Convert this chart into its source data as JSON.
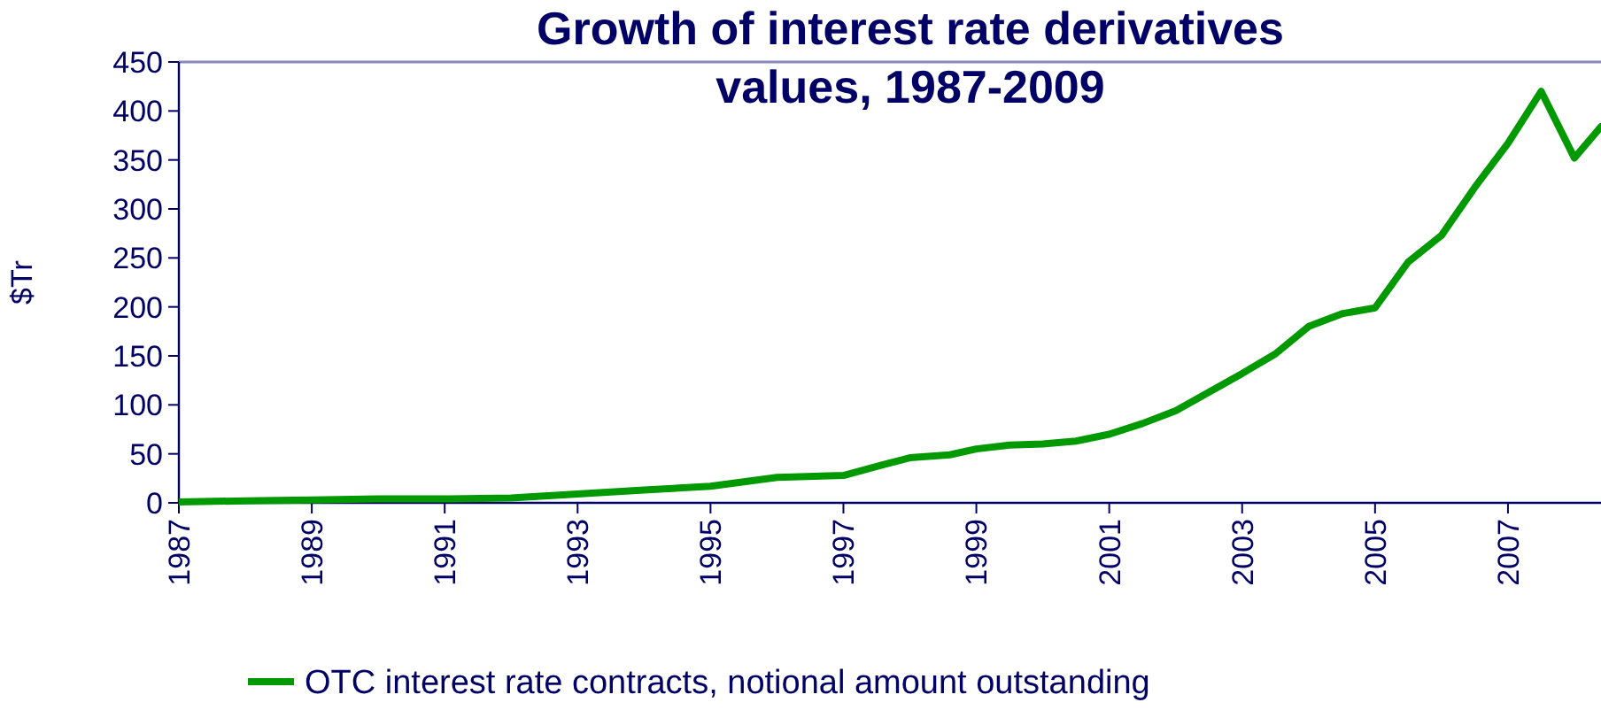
{
  "chart_data": {
    "type": "line",
    "title": "Growth of interest rate derivatives\nvalues, 1987-2009",
    "ylabel": "$Tr",
    "x": [
      1987,
      1988,
      1989,
      1990,
      1991,
      1992,
      1993,
      1994,
      1995,
      1996,
      1997,
      1997.6,
      1998,
      1998.6,
      1999,
      1999.5,
      2000,
      2000.5,
      2001,
      2001.5,
      2002,
      2002.5,
      2003,
      2003.5,
      2004,
      2004.5,
      2005,
      2005.5,
      2006,
      2006.5,
      2007,
      2007.5,
      2008,
      2008.4
    ],
    "series": [
      {
        "name": "OTC interest rate contracts, notional amount outstanding",
        "color": "#009900",
        "values": [
          1,
          2,
          3,
          4,
          4,
          5,
          9,
          13,
          17,
          26,
          28,
          39,
          46,
          49,
          55,
          59,
          60,
          63,
          70,
          81,
          94,
          113,
          132,
          152,
          180,
          193,
          199,
          246,
          273,
          322,
          367,
          420,
          352,
          384
        ]
      }
    ],
    "xlim": [
      1987,
      2008.4
    ],
    "xticks": [
      1987,
      1989,
      1991,
      1993,
      1995,
      1997,
      1999,
      2001,
      2003,
      2005,
      2007
    ],
    "ylim": [
      0,
      450
    ],
    "yticks": [
      0,
      50,
      100,
      150,
      200,
      250,
      300,
      350,
      400,
      450
    ],
    "grid": false,
    "legend": "bottom",
    "marker": "none",
    "line_style": "solid"
  }
}
